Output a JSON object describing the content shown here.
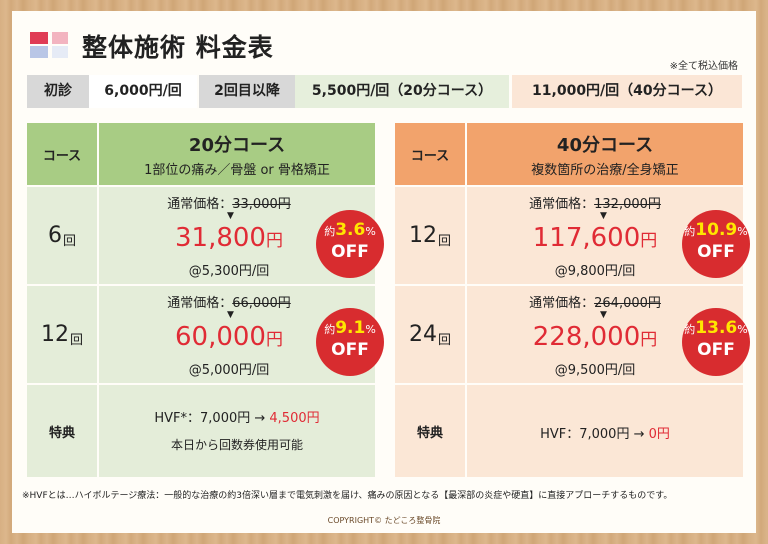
{
  "title": "整体施術 料金表",
  "tax_note": "※全て税込価格",
  "price_bar": {
    "first_label": "初診",
    "first_value": "6,000円/回",
    "second_label": "2回目以降",
    "price_20": "5,500円/回（20分コース）",
    "price_40": "11,000円/回（40分コース）"
  },
  "course_label": "コース",
  "course20": {
    "title": "20分コース",
    "subtitle": "1部位の痛み／骨盤 or 骨格矯正",
    "rows": [
      {
        "count": "6",
        "unit": "回",
        "regular_label": "通常価格：",
        "regular_price": "33,000円",
        "arrow": "▼",
        "price": "31,800",
        "yen": "円",
        "per": "@5,300円/回",
        "badge_prefix": "約",
        "badge_pct": "3.6",
        "badge_sign": "%",
        "badge_off": "OFF"
      },
      {
        "count": "12",
        "unit": "回",
        "regular_label": "通常価格：",
        "regular_price": "66,000円",
        "arrow": "▼",
        "price": "60,000",
        "yen": "円",
        "per": "@5,000円/回",
        "badge_prefix": "約",
        "badge_pct": "9.1",
        "badge_sign": "%",
        "badge_off": "OFF"
      }
    ],
    "benefit_label": "特典",
    "benefit_line1_prefix": "HVF*：7,000円 → ",
    "benefit_line1_red": "4,500円",
    "benefit_line2": "本日から回数券使用可能"
  },
  "course40": {
    "title": "40分コース",
    "subtitle": "複数箇所の治療/全身矯正",
    "rows": [
      {
        "count": "12",
        "unit": "回",
        "regular_label": "通常価格：",
        "regular_price": "132,000円",
        "arrow": "▼",
        "price": "117,600",
        "yen": "円",
        "per": "@9,800円/回",
        "badge_prefix": "約",
        "badge_pct": "10.9",
        "badge_sign": "%",
        "badge_off": "OFF"
      },
      {
        "count": "24",
        "unit": "回",
        "regular_label": "通常価格：",
        "regular_price": "264,000円",
        "arrow": "▼",
        "price": "228,000",
        "yen": "円",
        "per": "@9,500円/回",
        "badge_prefix": "約",
        "badge_pct": "13.6",
        "badge_sign": "%",
        "badge_off": "OFF"
      }
    ],
    "benefit_label": "特典",
    "benefit_line1_prefix": "HVF：7,000円 → ",
    "benefit_line1_red": "0円"
  },
  "footnote": "※HVFとは…ハイボルテージ療法：一般的な治療の約3倍深い層まで電気刺激を届け、痛みの原因となる【最深部の炎症や硬直】に直接アプローチするものです。",
  "copyright": "COPYRIGHT© たどころ整骨院",
  "colors": {
    "accent_red": "#e02b35",
    "green_header": "#a8cc84",
    "orange_header": "#f2a36c",
    "badge": "#d82c2f"
  }
}
